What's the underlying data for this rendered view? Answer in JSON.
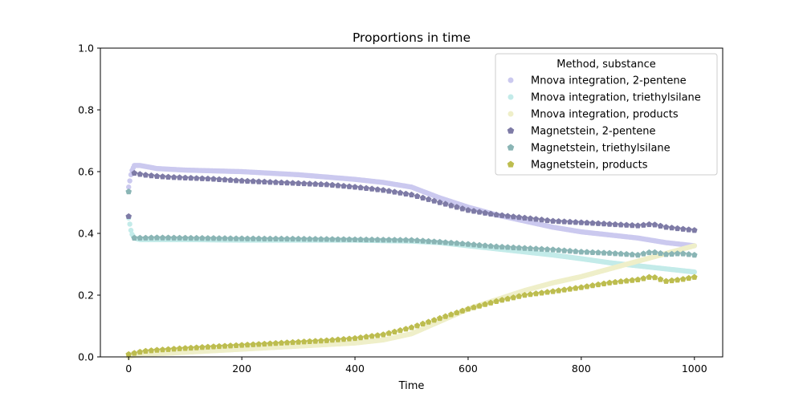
{
  "chart_data": {
    "type": "scatter",
    "title": "Proportions in time",
    "xlabel": "Time",
    "ylabel": "",
    "xlim": [
      -50,
      1050
    ],
    "ylim": [
      0.0,
      1.0
    ],
    "x_ticks": [
      "0",
      "200",
      "400",
      "600",
      "800",
      "1000"
    ],
    "y_ticks": [
      "0.0",
      "0.2",
      "0.4",
      "0.6",
      "0.8",
      "1.0"
    ],
    "grid": false,
    "legend": {
      "title": "Method, substance",
      "placement": "top-right"
    },
    "series": [
      {
        "name": "Mnova integration, 2-pentene",
        "color": "#cbc9ef",
        "marker": "circle",
        "x": [
          0,
          5,
          10,
          20,
          50,
          100,
          200,
          300,
          400,
          450,
          500,
          550,
          600,
          650,
          700,
          750,
          800,
          850,
          900,
          950,
          1000
        ],
        "y": [
          0.55,
          0.6,
          0.62,
          0.62,
          0.61,
          0.605,
          0.6,
          0.59,
          0.575,
          0.565,
          0.55,
          0.515,
          0.485,
          0.46,
          0.44,
          0.42,
          0.405,
          0.395,
          0.385,
          0.37,
          0.36
        ]
      },
      {
        "name": "Mnova integration, triethylsilane",
        "color": "#c3ebe9",
        "marker": "circle",
        "x": [
          0,
          5,
          10,
          20,
          50,
          100,
          200,
          300,
          400,
          500,
          550,
          600,
          650,
          700,
          750,
          800,
          850,
          900,
          950,
          1000
        ],
        "y": [
          0.45,
          0.4,
          0.385,
          0.38,
          0.38,
          0.38,
          0.378,
          0.378,
          0.378,
          0.375,
          0.37,
          0.36,
          0.35,
          0.34,
          0.33,
          0.318,
          0.305,
          0.295,
          0.285,
          0.275
        ]
      },
      {
        "name": "Mnova integration, products",
        "color": "#efefc9",
        "marker": "circle",
        "x": [
          0,
          10,
          50,
          100,
          200,
          300,
          400,
          450,
          500,
          550,
          600,
          650,
          700,
          750,
          800,
          850,
          900,
          950,
          1000
        ],
        "y": [
          0.0,
          0.005,
          0.01,
          0.015,
          0.025,
          0.035,
          0.045,
          0.055,
          0.075,
          0.115,
          0.155,
          0.185,
          0.215,
          0.24,
          0.26,
          0.285,
          0.31,
          0.335,
          0.36
        ]
      },
      {
        "name": "Magnetstein, 2-pentene",
        "color": "#7e7ba6",
        "marker": "pentagon",
        "x": [
          0,
          10,
          25,
          50,
          75,
          100,
          150,
          200,
          250,
          300,
          350,
          400,
          450,
          500,
          550,
          600,
          650,
          700,
          750,
          800,
          850,
          900,
          925,
          950,
          975,
          1000
        ],
        "y": [
          0.455,
          0.595,
          0.59,
          0.585,
          0.582,
          0.58,
          0.576,
          0.57,
          0.566,
          0.562,
          0.558,
          0.55,
          0.54,
          0.525,
          0.5,
          0.475,
          0.46,
          0.45,
          0.44,
          0.435,
          0.43,
          0.425,
          0.43,
          0.42,
          0.415,
          0.41
        ]
      },
      {
        "name": "Magnetstein, triethylsilane",
        "color": "#8ab5b5",
        "marker": "pentagon",
        "x": [
          0,
          5,
          10,
          25,
          50,
          100,
          200,
          300,
          400,
          500,
          550,
          600,
          650,
          700,
          750,
          800,
          850,
          900,
          925,
          950,
          975,
          1000
        ],
        "y": [
          0.535,
          0.42,
          0.385,
          0.385,
          0.386,
          0.385,
          0.383,
          0.382,
          0.38,
          0.378,
          0.372,
          0.365,
          0.357,
          0.352,
          0.347,
          0.34,
          0.336,
          0.33,
          0.34,
          0.332,
          0.335,
          0.33
        ]
      },
      {
        "name": "Magnetstein, products",
        "color": "#bdbd4f",
        "marker": "pentagon",
        "x": [
          0,
          10,
          25,
          50,
          100,
          150,
          200,
          250,
          300,
          350,
          400,
          450,
          500,
          550,
          600,
          650,
          700,
          750,
          800,
          850,
          900,
          925,
          950,
          975,
          1000
        ],
        "y": [
          0.008,
          0.012,
          0.018,
          0.022,
          0.028,
          0.033,
          0.038,
          0.043,
          0.048,
          0.053,
          0.06,
          0.072,
          0.095,
          0.125,
          0.155,
          0.18,
          0.2,
          0.212,
          0.225,
          0.24,
          0.25,
          0.26,
          0.245,
          0.25,
          0.258
        ]
      }
    ]
  }
}
